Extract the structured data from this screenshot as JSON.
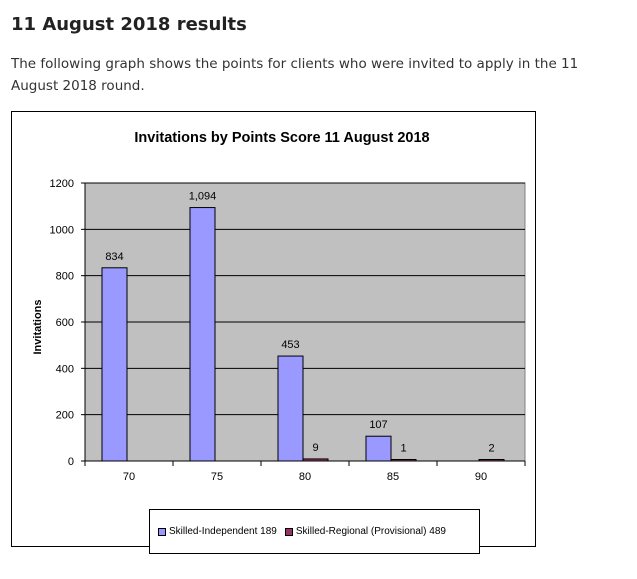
{
  "page": {
    "heading": "11 August 2018 results",
    "intro": "The following graph shows the points for clients who were invited to apply in the 11 August 2018 round."
  },
  "colors": {
    "plot_background": "#c0c0c0",
    "series_independent": "#9999ff",
    "series_regional": "#993366",
    "gridline": "#000000"
  },
  "chart_data": {
    "type": "bar",
    "title": "Invitations by Points Score 11 August 2018",
    "xlabel": "",
    "ylabel": "Invitations",
    "categories": [
      "70",
      "75",
      "80",
      "85",
      "90"
    ],
    "ylim": [
      0,
      1200
    ],
    "yticks": [
      0,
      200,
      400,
      600,
      800,
      1000,
      1200
    ],
    "grid": true,
    "legend_position": "bottom",
    "series": [
      {
        "name": "Skilled-Independent 189",
        "values": [
          834,
          1094,
          453,
          107,
          null
        ],
        "labels": [
          "834",
          "1,094",
          "453",
          "107",
          ""
        ]
      },
      {
        "name": "Skilled-Regional (Provisional) 489",
        "values": [
          null,
          null,
          9,
          1,
          2
        ],
        "labels": [
          "",
          "",
          "9",
          "1",
          "2"
        ]
      }
    ]
  }
}
